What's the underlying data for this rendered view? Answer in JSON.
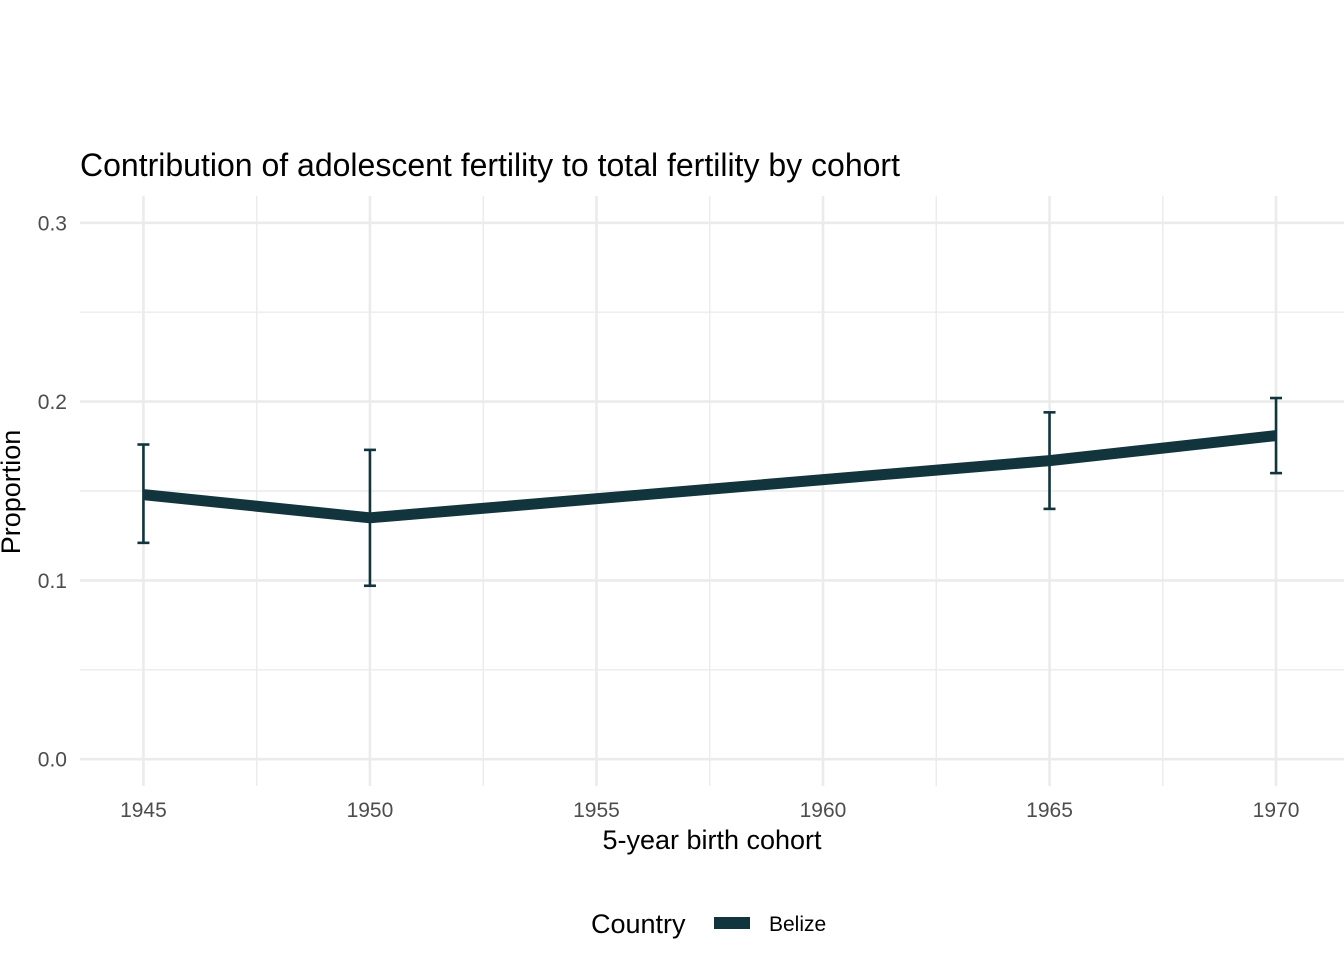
{
  "chart_data": {
    "type": "line",
    "title": "Contribution of adolescent fertility to total fertility by cohort",
    "xlabel": "5-year birth cohort",
    "ylabel": "Proportion",
    "xlim": [
      1943.6,
      1971.5
    ],
    "ylim": [
      -0.015,
      0.315
    ],
    "x_ticks": [
      1945,
      1950,
      1955,
      1960,
      1965,
      1970
    ],
    "x_tick_labels": [
      "1945",
      "1950",
      "1955",
      "1960",
      "1965",
      "1970"
    ],
    "y_ticks": [
      0.0,
      0.1,
      0.2,
      0.3
    ],
    "y_tick_labels": [
      "0.0",
      "0.1",
      "0.2",
      "0.3"
    ],
    "grid": true,
    "legend": {
      "title": "Country",
      "position": "bottom"
    },
    "series": [
      {
        "name": "Belize",
        "color": "#12343d",
        "points": [
          {
            "x": 1945,
            "y": 0.148,
            "lower": 0.121,
            "upper": 0.176
          },
          {
            "x": 1950,
            "y": 0.135,
            "lower": 0.097,
            "upper": 0.173
          },
          {
            "x": 1965,
            "y": 0.167,
            "lower": 0.14,
            "upper": 0.194
          },
          {
            "x": 1970,
            "y": 0.181,
            "lower": 0.16,
            "upper": 0.202
          }
        ]
      }
    ]
  }
}
